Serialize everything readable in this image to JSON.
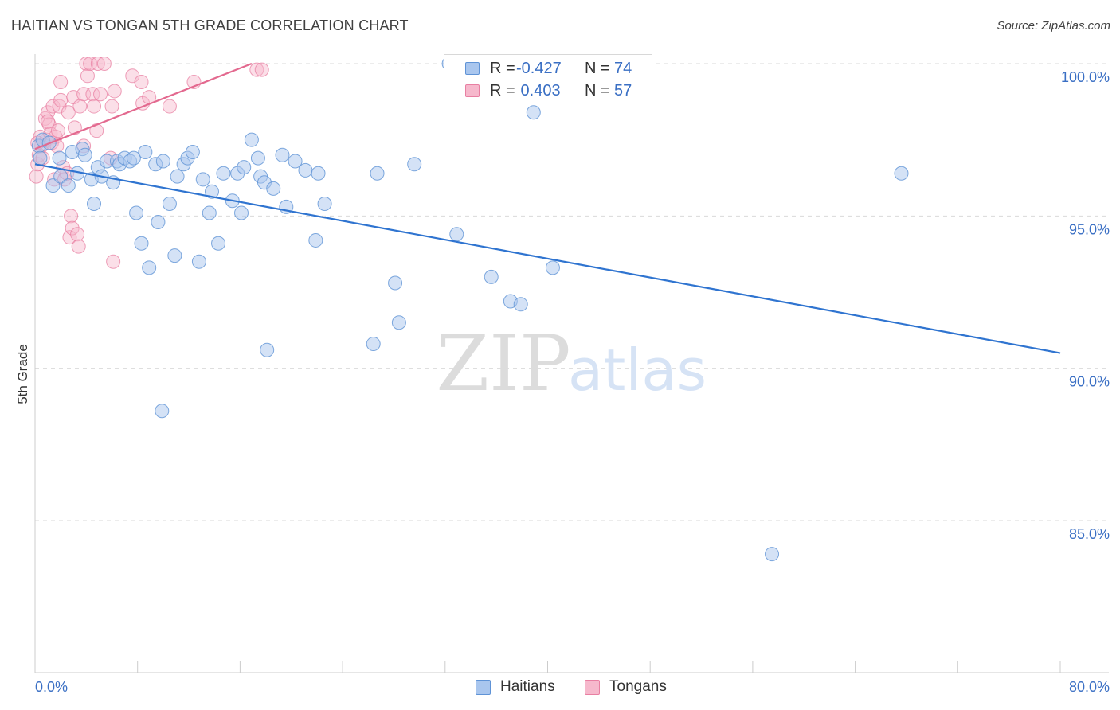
{
  "header": {
    "title": "HAITIAN VS TONGAN 5TH GRADE CORRELATION CHART",
    "source": "Source: ZipAtlas.com"
  },
  "watermark": {
    "zip": "ZIP",
    "atlas": "atlas"
  },
  "legend": {
    "rows": [
      {
        "r_label": "R =",
        "r_value": "-0.427",
        "n_label": "N =",
        "n_value": "74"
      },
      {
        "r_label": "R =",
        "r_value": " 0.403",
        "n_label": "N =",
        "n_value": "57"
      }
    ]
  },
  "bottom_legend": {
    "haitians": "Haitians",
    "tongans": "Tongans"
  },
  "colors": {
    "blue_fill": "#a9c6ee",
    "blue_stroke": "#5f93d6",
    "blue_line": "#2f74d0",
    "pink_fill": "#f6b8cc",
    "pink_stroke": "#e87fa2",
    "pink_line": "#e3698f",
    "axis_text": "#3a6fc4"
  },
  "chart_data": {
    "type": "scatter",
    "title": "HAITIAN VS TONGAN 5TH GRADE CORRELATION CHART",
    "xlabel": "",
    "ylabel": "5th Grade",
    "xlim": [
      0,
      80
    ],
    "ylim": [
      80.5,
      100.5
    ],
    "x_tick_labels": [
      "0.0%",
      "80.0%"
    ],
    "y_ticks": [
      {
        "value": 100,
        "label": "100.0%"
      },
      {
        "value": 95,
        "label": "95.0%"
      },
      {
        "value": 90,
        "label": "90.0%"
      },
      {
        "value": 85,
        "label": "85.0%"
      }
    ],
    "grid": true,
    "legend_position": "top-center",
    "series": [
      {
        "name": "Haitians",
        "r": -0.427,
        "n": 74,
        "trend": {
          "x": [
            0,
            80
          ],
          "y": [
            96.7,
            90.5
          ]
        },
        "points": [
          [
            0.3,
            97.3
          ],
          [
            0.4,
            96.9
          ],
          [
            0.6,
            97.5
          ],
          [
            1.1,
            97.4
          ],
          [
            1.4,
            96.0
          ],
          [
            1.9,
            96.9
          ],
          [
            2.0,
            96.3
          ],
          [
            2.6,
            96.0
          ],
          [
            2.9,
            97.1
          ],
          [
            3.3,
            96.4
          ],
          [
            3.7,
            97.2
          ],
          [
            3.9,
            97.0
          ],
          [
            4.4,
            96.2
          ],
          [
            4.6,
            95.4
          ],
          [
            4.9,
            96.6
          ],
          [
            5.2,
            96.3
          ],
          [
            5.6,
            96.8
          ],
          [
            6.1,
            96.1
          ],
          [
            6.4,
            96.8
          ],
          [
            6.6,
            96.7
          ],
          [
            7.0,
            96.9
          ],
          [
            7.4,
            96.8
          ],
          [
            7.7,
            96.9
          ],
          [
            7.9,
            95.1
          ],
          [
            8.3,
            94.1
          ],
          [
            8.6,
            97.1
          ],
          [
            8.9,
            93.3
          ],
          [
            9.4,
            96.7
          ],
          [
            9.6,
            94.8
          ],
          [
            10.0,
            96.8
          ],
          [
            10.5,
            95.4
          ],
          [
            10.9,
            93.7
          ],
          [
            11.1,
            96.3
          ],
          [
            11.6,
            96.7
          ],
          [
            11.9,
            96.9
          ],
          [
            12.3,
            97.1
          ],
          [
            12.8,
            93.5
          ],
          [
            13.1,
            96.2
          ],
          [
            13.6,
            95.1
          ],
          [
            13.8,
            95.8
          ],
          [
            14.3,
            94.1
          ],
          [
            14.7,
            96.4
          ],
          [
            15.4,
            95.5
          ],
          [
            15.8,
            96.4
          ],
          [
            16.1,
            95.1
          ],
          [
            16.3,
            96.6
          ],
          [
            16.9,
            97.5
          ],
          [
            17.4,
            96.9
          ],
          [
            17.6,
            96.3
          ],
          [
            17.9,
            96.1
          ],
          [
            18.1,
            90.6
          ],
          [
            18.6,
            95.9
          ],
          [
            19.3,
            97.0
          ],
          [
            19.6,
            95.3
          ],
          [
            20.3,
            96.8
          ],
          [
            21.1,
            96.5
          ],
          [
            21.9,
            94.2
          ],
          [
            22.1,
            96.4
          ],
          [
            22.6,
            95.4
          ],
          [
            26.4,
            90.8
          ],
          [
            26.7,
            96.4
          ],
          [
            28.1,
            92.8
          ],
          [
            28.4,
            91.5
          ],
          [
            29.6,
            96.7
          ],
          [
            32.3,
            100.0
          ],
          [
            32.9,
            94.4
          ],
          [
            35.6,
            93.0
          ],
          [
            37.1,
            92.2
          ],
          [
            37.9,
            92.1
          ],
          [
            38.9,
            98.4
          ],
          [
            40.4,
            93.3
          ],
          [
            67.6,
            96.4
          ],
          [
            9.9,
            88.6
          ],
          [
            57.5,
            83.9
          ]
        ]
      },
      {
        "name": "Tongans",
        "r": 0.403,
        "n": 57,
        "trend": {
          "x": [
            0,
            16.9
          ],
          "y": [
            97.2,
            100.0
          ]
        },
        "points": [
          [
            0.1,
            96.3
          ],
          [
            0.2,
            96.7
          ],
          [
            0.3,
            97.0
          ],
          [
            0.4,
            97.6
          ],
          [
            0.5,
            97.3
          ],
          [
            0.6,
            96.9
          ],
          [
            0.8,
            98.2
          ],
          [
            0.9,
            97.5
          ],
          [
            1.0,
            98.4
          ],
          [
            1.1,
            98.0
          ],
          [
            1.2,
            97.7
          ],
          [
            1.3,
            97.4
          ],
          [
            1.4,
            98.6
          ],
          [
            1.5,
            96.2
          ],
          [
            1.6,
            97.6
          ],
          [
            1.7,
            97.3
          ],
          [
            1.8,
            97.8
          ],
          [
            1.9,
            98.6
          ],
          [
            2.0,
            98.8
          ],
          [
            2.0,
            99.4
          ],
          [
            2.2,
            96.6
          ],
          [
            2.3,
            96.2
          ],
          [
            2.5,
            96.4
          ],
          [
            2.6,
            98.4
          ],
          [
            2.8,
            95.0
          ],
          [
            2.7,
            94.3
          ],
          [
            2.9,
            94.6
          ],
          [
            3.0,
            98.9
          ],
          [
            3.1,
            97.9
          ],
          [
            3.3,
            94.4
          ],
          [
            3.4,
            94.0
          ],
          [
            3.5,
            98.6
          ],
          [
            3.8,
            97.3
          ],
          [
            3.8,
            99.0
          ],
          [
            4.0,
            100.0
          ],
          [
            4.1,
            99.6
          ],
          [
            4.3,
            100.0
          ],
          [
            4.5,
            99.0
          ],
          [
            4.6,
            98.6
          ],
          [
            4.8,
            97.8
          ],
          [
            4.9,
            100.0
          ],
          [
            5.1,
            99.0
          ],
          [
            5.4,
            100.0
          ],
          [
            5.9,
            96.9
          ],
          [
            6.0,
            98.6
          ],
          [
            6.1,
            93.5
          ],
          [
            6.2,
            99.1
          ],
          [
            7.6,
            99.6
          ],
          [
            8.4,
            98.7
          ],
          [
            8.3,
            99.4
          ],
          [
            8.9,
            98.9
          ],
          [
            10.5,
            98.6
          ],
          [
            12.4,
            99.4
          ],
          [
            17.3,
            99.8
          ],
          [
            17.7,
            99.8
          ],
          [
            0.2,
            97.4
          ],
          [
            1.0,
            98.1
          ]
        ]
      }
    ]
  }
}
